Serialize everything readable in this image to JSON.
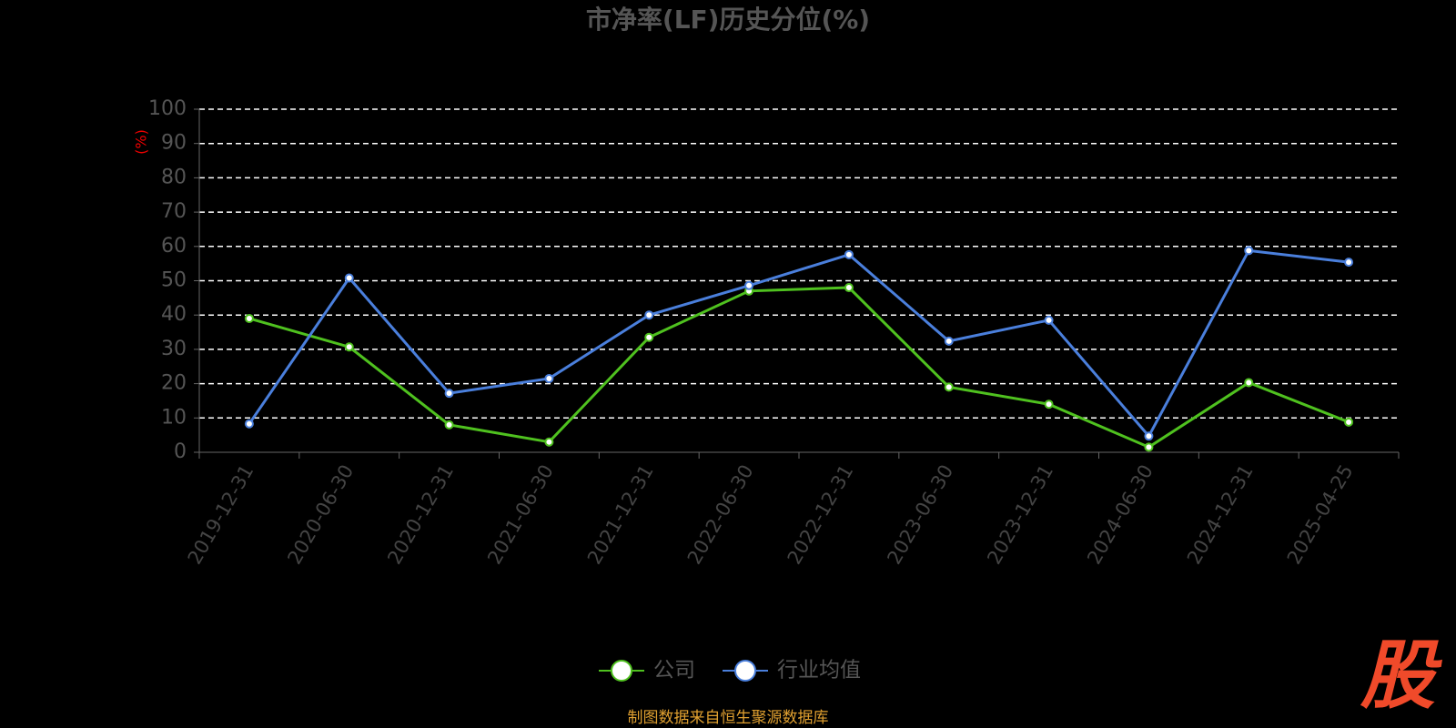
{
  "chart_data": {
    "type": "line",
    "title": "市净率(LF)历史分位(%)",
    "y_label": "(%)",
    "categories": [
      "2019-12-31",
      "2020-06-30",
      "2020-12-31",
      "2021-06-30",
      "2021-12-31",
      "2022-06-30",
      "2022-12-31",
      "2023-06-30",
      "2023-12-31",
      "2024-06-30",
      "2024-12-31",
      "2025-04-25"
    ],
    "series": [
      {
        "name": "公司",
        "color": "#4fc11f",
        "values": [
          39,
          30.7,
          8,
          3,
          33.5,
          47,
          48,
          19,
          14,
          1.5,
          20.3,
          8.8
        ]
      },
      {
        "name": "行业均值",
        "color": "#4a7fdc",
        "values": [
          8.3,
          50.8,
          17.2,
          21.5,
          40,
          48.6,
          57.6,
          32.4,
          38.5,
          4.7,
          58.8,
          55.4
        ]
      }
    ],
    "ylim": [
      0,
      100
    ],
    "yticks": [
      0,
      10,
      20,
      30,
      40,
      50,
      60,
      70,
      80,
      90,
      100
    ],
    "grid": true,
    "source": "制图数据来自恒生聚源数据库",
    "watermark": "股"
  }
}
